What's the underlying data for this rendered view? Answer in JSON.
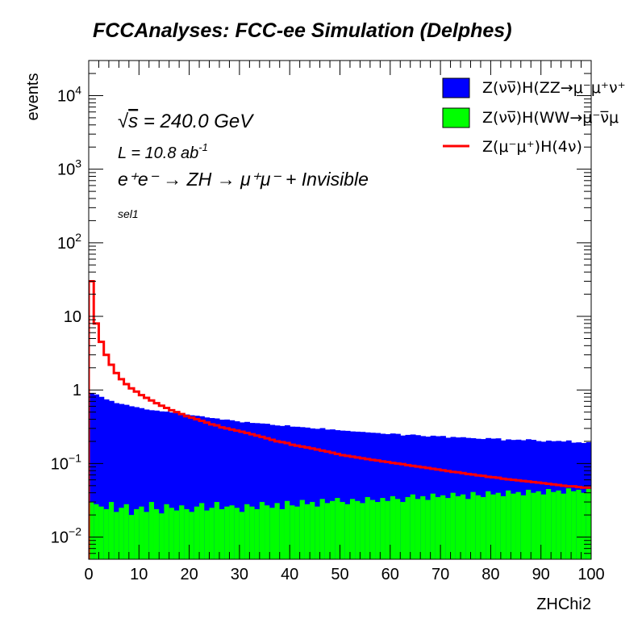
{
  "chart_data": {
    "type": "histogram",
    "title": "FCCAnalyses: FCC-ee Simulation (Delphes)",
    "xlabel": "ZHChi2",
    "ylabel": "events",
    "xlim": [
      0,
      100
    ],
    "ylim": [
      0.005,
      30000
    ],
    "yscale": "log",
    "nbins": 100,
    "x_ticks": [
      "0",
      "10",
      "20",
      "30",
      "40",
      "50",
      "60",
      "70",
      "80",
      "90",
      "100"
    ],
    "y_ticks": [
      {
        "value": 0.01,
        "base": "10",
        "exp": "−2"
      },
      {
        "value": 0.1,
        "base": "10",
        "exp": "−1"
      },
      {
        "value": 1,
        "base": "1",
        "exp": ""
      },
      {
        "value": 10,
        "base": "10",
        "exp": ""
      },
      {
        "value": 100,
        "base": "10",
        "exp": "2"
      },
      {
        "value": 1000,
        "base": "10",
        "exp": "3"
      },
      {
        "value": 10000,
        "base": "10",
        "exp": "4"
      }
    ],
    "annotations": {
      "sqrts_prefix": "√",
      "sqrts_s": "s",
      "sqrts_rest": " = 240.0 GeV",
      "lumi_text": "L = 10.8 ab",
      "lumi_exp": "-1",
      "process": "e⁺e⁻ → ZH → μ⁺μ⁻ + Invisible",
      "selection": "sel1"
    },
    "legend_position": "top-right",
    "series": [
      {
        "name": "Z(νν̅)H(ZZ→μ⁻μ⁺ν⁺",
        "style": "stacked-fill",
        "color": "#0000ff",
        "values": [
          0.88,
          0.84,
          0.78,
          0.72,
          0.68,
          0.64,
          0.62,
          0.6,
          0.58,
          0.56,
          0.54,
          0.52,
          0.5,
          0.5,
          0.49,
          0.48,
          0.47,
          0.46,
          0.45,
          0.44,
          0.43,
          0.42,
          0.41,
          0.4,
          0.39,
          0.38,
          0.37,
          0.37,
          0.36,
          0.35,
          0.34,
          0.34,
          0.33,
          0.33,
          0.32,
          0.32,
          0.31,
          0.3,
          0.3,
          0.3,
          0.29,
          0.29,
          0.28,
          0.28,
          0.27,
          0.27,
          0.27,
          0.26,
          0.26,
          0.25,
          0.25,
          0.25,
          0.24,
          0.24,
          0.24,
          0.23,
          0.23,
          0.23,
          0.22,
          0.22,
          0.22,
          0.22,
          0.21,
          0.21,
          0.21,
          0.21,
          0.2,
          0.2,
          0.2,
          0.2,
          0.2,
          0.19,
          0.19,
          0.19,
          0.19,
          0.19,
          0.18,
          0.18,
          0.18,
          0.18,
          0.18,
          0.18,
          0.17,
          0.17,
          0.17,
          0.17,
          0.17,
          0.17,
          0.17,
          0.16,
          0.16,
          0.16,
          0.16,
          0.16,
          0.16,
          0.16,
          0.15,
          0.15,
          0.15,
          0.15
        ]
      },
      {
        "name": "Z(νν̅)H(WW→μ⁻ν̅μ",
        "style": "stacked-fill",
        "color": "#00ff00",
        "values": [
          0.03,
          0.028,
          0.026,
          0.024,
          0.03,
          0.022,
          0.025,
          0.028,
          0.02,
          0.024,
          0.026,
          0.022,
          0.03,
          0.024,
          0.021,
          0.028,
          0.025,
          0.023,
          0.027,
          0.024,
          0.022,
          0.026,
          0.029,
          0.023,
          0.025,
          0.03,
          0.024,
          0.026,
          0.027,
          0.025,
          0.022,
          0.028,
          0.026,
          0.024,
          0.03,
          0.027,
          0.025,
          0.029,
          0.024,
          0.031,
          0.027,
          0.026,
          0.032,
          0.028,
          0.03,
          0.026,
          0.033,
          0.029,
          0.031,
          0.034,
          0.03,
          0.028,
          0.033,
          0.031,
          0.029,
          0.035,
          0.032,
          0.03,
          0.034,
          0.031,
          0.036,
          0.033,
          0.03,
          0.035,
          0.038,
          0.033,
          0.036,
          0.032,
          0.039,
          0.035,
          0.037,
          0.034,
          0.04,
          0.036,
          0.038,
          0.033,
          0.041,
          0.037,
          0.035,
          0.042,
          0.038,
          0.04,
          0.036,
          0.043,
          0.039,
          0.041,
          0.037,
          0.044,
          0.04,
          0.042,
          0.038,
          0.045,
          0.041,
          0.043,
          0.039,
          0.046,
          0.042,
          0.044,
          0.04,
          0.045
        ]
      },
      {
        "name": "Z(μ⁻μ⁺)H(4ν)",
        "style": "line",
        "color": "#ff0000",
        "values": [
          30,
          8,
          4.5,
          3,
          2.2,
          1.7,
          1.4,
          1.2,
          1.05,
          0.95,
          0.85,
          0.78,
          0.72,
          0.66,
          0.61,
          0.57,
          0.53,
          0.5,
          0.47,
          0.44,
          0.42,
          0.4,
          0.38,
          0.36,
          0.34,
          0.33,
          0.31,
          0.3,
          0.29,
          0.28,
          0.27,
          0.26,
          0.25,
          0.24,
          0.23,
          0.22,
          0.21,
          0.2,
          0.195,
          0.19,
          0.18,
          0.175,
          0.17,
          0.165,
          0.16,
          0.155,
          0.15,
          0.145,
          0.14,
          0.135,
          0.13,
          0.127,
          0.124,
          0.121,
          0.118,
          0.115,
          0.112,
          0.11,
          0.107,
          0.105,
          0.102,
          0.1,
          0.098,
          0.095,
          0.093,
          0.091,
          0.089,
          0.087,
          0.085,
          0.083,
          0.081,
          0.079,
          0.077,
          0.076,
          0.074,
          0.072,
          0.071,
          0.069,
          0.068,
          0.066,
          0.065,
          0.064,
          0.062,
          0.061,
          0.06,
          0.059,
          0.058,
          0.057,
          0.056,
          0.055,
          0.054,
          0.053,
          0.052,
          0.051,
          0.05,
          0.049,
          0.049,
          0.048,
          0.047,
          0.047
        ]
      }
    ]
  }
}
